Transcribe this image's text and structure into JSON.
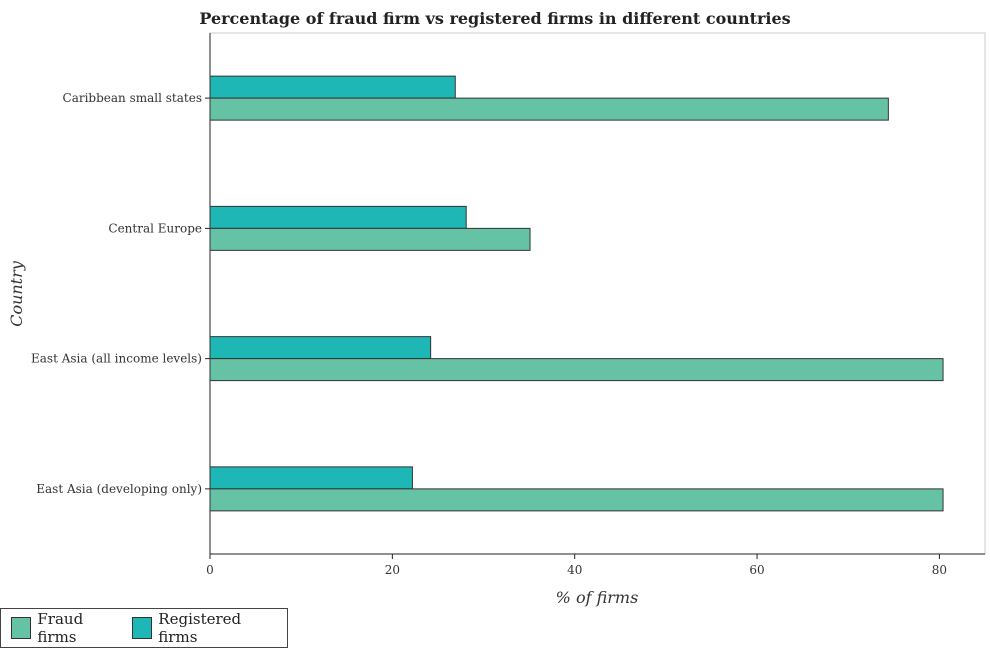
{
  "chart_data": {
    "type": "bar",
    "orientation": "horizontal",
    "title": "Percentage of fraud firm vs registered firms in different countries",
    "xlabel": "% of firms",
    "ylabel": "Country",
    "xlim": [
      0,
      85
    ],
    "xticks": [
      0,
      20,
      40,
      60,
      80
    ],
    "categories": [
      "Caribbean small states",
      "Central Europe",
      "East Asia (all income levels)",
      "East Asia (developing only)"
    ],
    "series": [
      {
        "name": "Fraud firms",
        "color": "#66c2a5",
        "values": [
          74.4,
          35.1,
          80.4,
          80.4
        ]
      },
      {
        "name": "Registered firms",
        "color": "#1fb6b6",
        "values": [
          26.9,
          28.1,
          24.2,
          22.2
        ]
      }
    ],
    "grid": false,
    "legend_position": "bottom-left"
  }
}
